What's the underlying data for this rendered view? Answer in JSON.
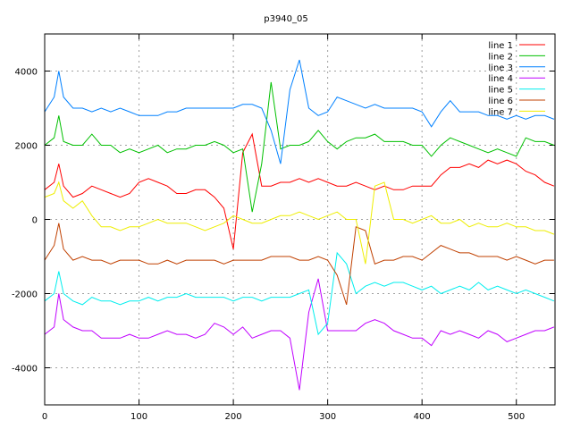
{
  "chart_data": {
    "type": "line",
    "title": "p3940_05",
    "xlabel": "",
    "ylabel": "",
    "xlim": [
      0,
      541
    ],
    "ylim": [
      -5000,
      5000
    ],
    "xticks": [
      0,
      100,
      200,
      300,
      400,
      500
    ],
    "yticks": [
      -4000,
      -2000,
      0,
      2000,
      4000
    ],
    "grid": true,
    "legend_position": "top-right",
    "x": [
      0,
      10,
      15,
      20,
      30,
      40,
      50,
      60,
      70,
      80,
      90,
      100,
      110,
      120,
      130,
      140,
      150,
      160,
      170,
      180,
      190,
      200,
      210,
      220,
      230,
      240,
      250,
      260,
      270,
      280,
      290,
      300,
      310,
      320,
      330,
      340,
      350,
      360,
      370,
      380,
      390,
      400,
      410,
      420,
      430,
      440,
      450,
      460,
      470,
      480,
      490,
      500,
      510,
      520,
      530,
      540
    ],
    "series": [
      {
        "name": "line 1",
        "color": "#ff0000",
        "values": [
          800,
          1000,
          1500,
          900,
          600,
          700,
          900,
          800,
          700,
          600,
          700,
          1000,
          1100,
          1000,
          900,
          700,
          700,
          800,
          800,
          600,
          300,
          -800,
          1800,
          2300,
          900,
          900,
          1000,
          1000,
          1100,
          1000,
          1100,
          1000,
          900,
          900,
          1000,
          900,
          800,
          900,
          800,
          800,
          900,
          900,
          900,
          1200,
          1400,
          1400,
          1500,
          1400,
          1600,
          1500,
          1600,
          1500,
          1300,
          1200,
          1000,
          900
        ]
      },
      {
        "name": "line 2",
        "color": "#00c000",
        "values": [
          2000,
          2200,
          2800,
          2100,
          2000,
          2000,
          2300,
          2000,
          2000,
          1800,
          1900,
          1800,
          1900,
          2000,
          1800,
          1900,
          1900,
          2000,
          2000,
          2100,
          2000,
          1800,
          1900,
          200,
          1500,
          3700,
          1900,
          2000,
          2000,
          2100,
          2400,
          2100,
          1900,
          2100,
          2200,
          2200,
          2300,
          2100,
          2100,
          2100,
          2000,
          2000,
          1700,
          2000,
          2200,
          2100,
          2000,
          1900,
          1800,
          1900,
          1800,
          1700,
          2200,
          2100,
          2100,
          2000
        ]
      },
      {
        "name": "line 3",
        "color": "#0080ff",
        "values": [
          2900,
          3300,
          4000,
          3300,
          3000,
          3000,
          2900,
          3000,
          2900,
          3000,
          2900,
          2800,
          2800,
          2800,
          2900,
          2900,
          3000,
          3000,
          3000,
          3000,
          3000,
          3000,
          3100,
          3100,
          3000,
          2400,
          1500,
          3500,
          4300,
          3000,
          2800,
          2900,
          3300,
          3200,
          3100,
          3000,
          3100,
          3000,
          3000,
          3000,
          3000,
          2900,
          2500,
          2900,
          3200,
          2900,
          2900,
          2900,
          2800,
          2800,
          2700,
          2800,
          2700,
          2800,
          2800,
          2700
        ]
      },
      {
        "name": "line 4",
        "color": "#c000ff",
        "values": [
          -3100,
          -2900,
          -2000,
          -2700,
          -2900,
          -3000,
          -3000,
          -3200,
          -3200,
          -3200,
          -3100,
          -3200,
          -3200,
          -3100,
          -3000,
          -3100,
          -3100,
          -3200,
          -3100,
          -2800,
          -2900,
          -3100,
          -2900,
          -3200,
          -3100,
          -3000,
          -3000,
          -3200,
          -4600,
          -2500,
          -1600,
          -3000,
          -3000,
          -3000,
          -3000,
          -2800,
          -2700,
          -2800,
          -3000,
          -3100,
          -3200,
          -3200,
          -3400,
          -3000,
          -3100,
          -3000,
          -3100,
          -3200,
          -3000,
          -3100,
          -3300,
          -3200,
          -3100,
          -3000,
          -3000,
          -2900
        ]
      },
      {
        "name": "line 5",
        "color": "#00eeee",
        "values": [
          -2200,
          -2000,
          -1400,
          -2000,
          -2200,
          -2300,
          -2100,
          -2200,
          -2200,
          -2300,
          -2200,
          -2200,
          -2100,
          -2200,
          -2100,
          -2100,
          -2000,
          -2100,
          -2100,
          -2100,
          -2100,
          -2200,
          -2100,
          -2100,
          -2200,
          -2100,
          -2100,
          -2100,
          -2000,
          -1900,
          -3100,
          -2800,
          -900,
          -1200,
          -2000,
          -1800,
          -1700,
          -1800,
          -1700,
          -1700,
          -1800,
          -1900,
          -1800,
          -2000,
          -1900,
          -1800,
          -1900,
          -1700,
          -1900,
          -1800,
          -1900,
          -2000,
          -1900,
          -2000,
          -2100,
          -2200
        ]
      },
      {
        "name": "line 6",
        "color": "#c04000",
        "values": [
          -1100,
          -700,
          -100,
          -800,
          -1100,
          -1000,
          -1100,
          -1100,
          -1200,
          -1100,
          -1100,
          -1100,
          -1200,
          -1200,
          -1100,
          -1200,
          -1100,
          -1100,
          -1100,
          -1100,
          -1200,
          -1100,
          -1100,
          -1100,
          -1100,
          -1000,
          -1000,
          -1000,
          -1100,
          -1100,
          -1000,
          -1100,
          -1500,
          -2300,
          -200,
          -300,
          -1200,
          -1100,
          -1100,
          -1000,
          -1000,
          -1100,
          -900,
          -700,
          -800,
          -900,
          -900,
          -1000,
          -1000,
          -1000,
          -1100,
          -1000,
          -1100,
          -1200,
          -1100,
          -1100
        ]
      },
      {
        "name": "line 7",
        "color": "#eeee00",
        "values": [
          600,
          700,
          1000,
          500,
          300,
          500,
          100,
          -200,
          -200,
          -300,
          -200,
          -200,
          -100,
          0,
          -100,
          -100,
          -100,
          -200,
          -300,
          -200,
          -100,
          100,
          0,
          -100,
          -100,
          0,
          100,
          100,
          200,
          100,
          0,
          100,
          200,
          0,
          0,
          -1200,
          900,
          1000,
          0,
          0,
          -100,
          0,
          100,
          -100,
          -100,
          0,
          -200,
          -100,
          -200,
          -200,
          -100,
          -200,
          -200,
          -300,
          -300,
          -400
        ]
      }
    ]
  }
}
